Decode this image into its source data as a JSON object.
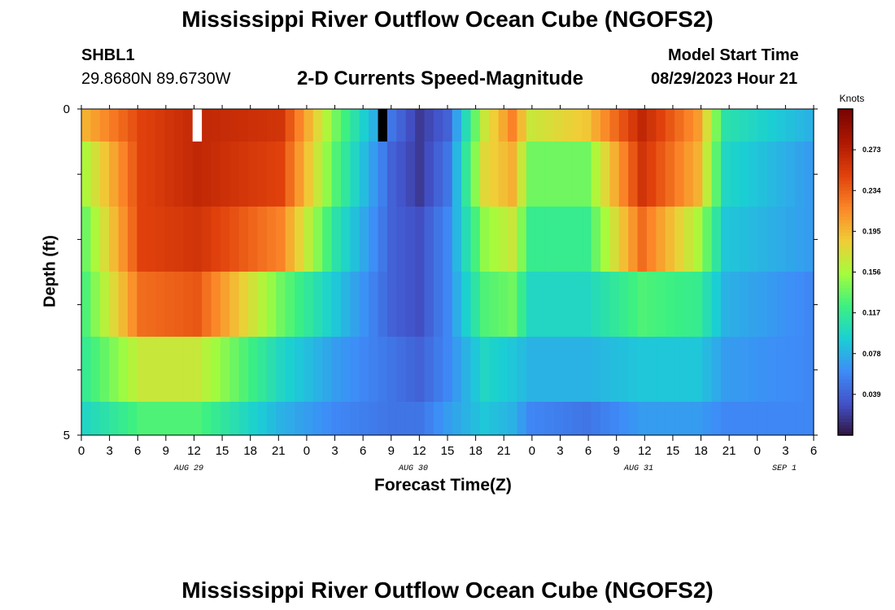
{
  "header": {
    "title": "Mississippi River Outflow Ocean Cube (NGOFS2)",
    "station": "SHBL1",
    "coords": "29.8680N  89.6730W",
    "subtitle": "2-D Currents Speed-Magnitude",
    "model_start_label": "Model Start Time",
    "model_start_value": "08/29/2023 Hour 21",
    "bottom_title": "Mississippi River Outflow Ocean Cube (NGOFS2)"
  },
  "chart_data": {
    "type": "heatmap",
    "title": "2-D Currents Speed-Magnitude",
    "xlabel": "Forecast Time(Z)",
    "ylabel": "Depth (ft)",
    "y_tick_labels": [
      "0",
      "5"
    ],
    "ylim": [
      0,
      5
    ],
    "x_tick_labels": [
      "0",
      "3",
      "6",
      "9",
      "12",
      "15",
      "18",
      "21",
      "0",
      "3",
      "6",
      "9",
      "12",
      "15",
      "18",
      "21",
      "0",
      "3",
      "6",
      "9",
      "12",
      "15",
      "18",
      "21",
      "0",
      "3",
      "6"
    ],
    "date_labels": [
      "AUG 29",
      "AUG 30",
      "AUG 31",
      "SEP 1"
    ],
    "colorbar": {
      "unit": "Knots",
      "ticks": [
        "0.273",
        "0.234",
        "0.195",
        "0.156",
        "0.117",
        "0.078",
        "0.039"
      ],
      "range": [
        0,
        0.312
      ]
    },
    "depth_layers": 6,
    "time_steps": 79,
    "anchor_hours": [
      0,
      6,
      12,
      21,
      27,
      33,
      36,
      39,
      43,
      46,
      48,
      54,
      60,
      66,
      69,
      78
    ],
    "layer_speed_profiles": [
      [
        0.2,
        0.25,
        0.27,
        0.26,
        0.14,
        0.05,
        0.02,
        0.04,
        0.17,
        0.22,
        0.17,
        0.19,
        0.27,
        0.21,
        0.11,
        0.08
      ],
      [
        0.16,
        0.25,
        0.27,
        0.25,
        0.13,
        0.04,
        0.02,
        0.05,
        0.18,
        0.2,
        0.14,
        0.14,
        0.26,
        0.2,
        0.1,
        0.07
      ],
      [
        0.14,
        0.25,
        0.26,
        0.22,
        0.11,
        0.04,
        0.03,
        0.06,
        0.15,
        0.17,
        0.12,
        0.12,
        0.23,
        0.16,
        0.09,
        0.07
      ],
      [
        0.13,
        0.23,
        0.24,
        0.14,
        0.09,
        0.04,
        0.03,
        0.06,
        0.13,
        0.14,
        0.1,
        0.1,
        0.13,
        0.12,
        0.08,
        0.06
      ],
      [
        0.12,
        0.17,
        0.17,
        0.1,
        0.07,
        0.05,
        0.04,
        0.06,
        0.1,
        0.09,
        0.08,
        0.08,
        0.09,
        0.09,
        0.07,
        0.06
      ],
      [
        0.1,
        0.13,
        0.13,
        0.08,
        0.06,
        0.05,
        0.05,
        0.07,
        0.09,
        0.08,
        0.06,
        0.05,
        0.07,
        0.07,
        0.06,
        0.06
      ]
    ],
    "special_cells": [
      {
        "layer": 0,
        "hour": 12,
        "value": "above-max"
      },
      {
        "layer": 0,
        "hour": 32,
        "value": "below-min"
      }
    ]
  }
}
